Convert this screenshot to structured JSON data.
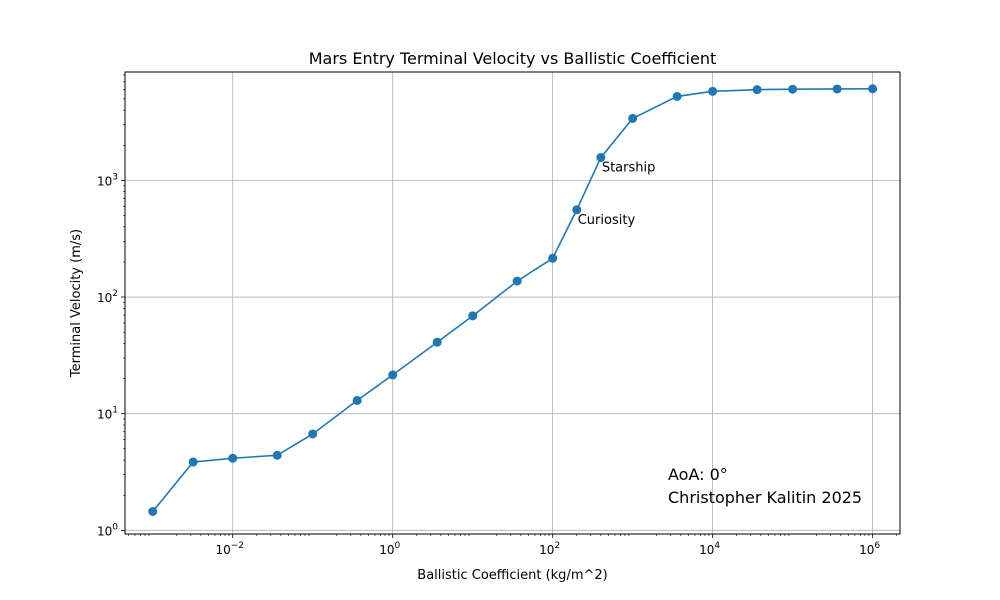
{
  "chart_data": {
    "type": "line",
    "title": "Mars Entry Terminal Velocity vs Ballistic Coefficient",
    "xlabel": "Ballistic Coefficient (kg/m^2)",
    "ylabel": "Terminal Velocity (m/s)",
    "xscale": "log",
    "yscale": "log",
    "xlim": [
      0.00045,
      2200000.0
    ],
    "ylim": [
      0.93,
      8500
    ],
    "grid": true,
    "color": "#1f77b4",
    "x_ticks": [
      {
        "base": "10",
        "exp": "−2",
        "value": 0.01
      },
      {
        "base": "10",
        "exp": "0",
        "value": 1
      },
      {
        "base": "10",
        "exp": "2",
        "value": 100
      },
      {
        "base": "10",
        "exp": "4",
        "value": 10000
      },
      {
        "base": "10",
        "exp": "6",
        "value": 1000000
      }
    ],
    "y_ticks": [
      {
        "base": "10",
        "exp": "0",
        "value": 1
      },
      {
        "base": "10",
        "exp": "1",
        "value": 10
      },
      {
        "base": "10",
        "exp": "2",
        "value": 100
      },
      {
        "base": "10",
        "exp": "3",
        "value": 1000
      }
    ],
    "series": [
      {
        "points": [
          {
            "x": 0.001,
            "y": 1.45
          },
          {
            "x": 0.0032,
            "y": 3.85
          },
          {
            "x": 0.01,
            "y": 4.15
          },
          {
            "x": 0.036,
            "y": 4.4
          },
          {
            "x": 0.1,
            "y": 6.7
          },
          {
            "x": 0.36,
            "y": 13
          },
          {
            "x": 1,
            "y": 21.5
          },
          {
            "x": 3.6,
            "y": 41
          },
          {
            "x": 10,
            "y": 69
          },
          {
            "x": 36,
            "y": 137
          },
          {
            "x": 100,
            "y": 215
          },
          {
            "x": 200,
            "y": 560
          },
          {
            "x": 400,
            "y": 1570
          },
          {
            "x": 1000,
            "y": 3400
          },
          {
            "x": 3600,
            "y": 5250
          },
          {
            "x": 10000,
            "y": 5800
          },
          {
            "x": 36000,
            "y": 6000
          },
          {
            "x": 100000,
            "y": 6050
          },
          {
            "x": 360000,
            "y": 6080
          },
          {
            "x": 1000000,
            "y": 6100
          }
        ]
      }
    ],
    "annotations": [
      {
        "text": "Starship",
        "x": 400,
        "y": 1570
      },
      {
        "text": "Curiosity",
        "x": 200,
        "y": 560
      }
    ],
    "notes": [
      "AoA: 0°",
      "Christopher Kalitin 2025"
    ]
  }
}
